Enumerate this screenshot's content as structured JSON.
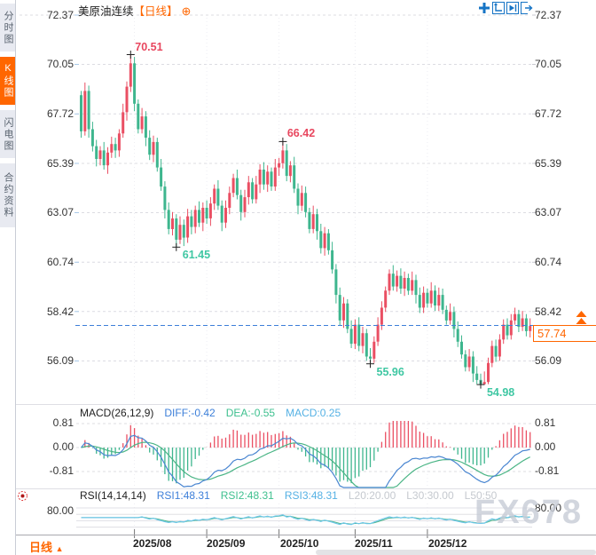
{
  "sidebar": {
    "tabs": [
      {
        "label": "分时图",
        "active": false
      },
      {
        "label": "K线图",
        "active": true
      },
      {
        "label": "闪电图",
        "active": false
      },
      {
        "label": "合约资料",
        "active": false
      }
    ]
  },
  "header": {
    "symbol": "美原油连续",
    "interval_tag": "【日线】",
    "expand_glyph": "⊕"
  },
  "price_axis": [
    "72.37",
    "70.05",
    "67.72",
    "65.39",
    "63.07",
    "60.74",
    "58.42",
    "56.09"
  ],
  "macd_axis": [
    "0.81",
    "0.00",
    "-0.81"
  ],
  "rsi_axis_label": "80.00",
  "macd_header": {
    "name": "MACD(26,12,9)",
    "diff": "DIFF:-0.42",
    "dea": "DEA:-0.55",
    "macd": "MACD:0.25"
  },
  "rsi_header": {
    "name": "RSI(14,14,14)",
    "rsi1": "RSI1:48.31",
    "rsi2": "RSI2:48.31",
    "rsi3": "RSI3:48.31",
    "l20": "L20:20.00",
    "l30": "L30:30.00",
    "l50": "L50:50"
  },
  "last_price": "57.74",
  "x_axis": {
    "interval_label": "日线",
    "arrow": "▲",
    "ticks": [
      "2025/08",
      "2025/09",
      "2025/10",
      "2025/11",
      "2025/12"
    ]
  },
  "watermark": "FX678",
  "colors": {
    "up": "#ea4f63",
    "down": "#3eb68e",
    "accent": "#ff6600",
    "diff_line": "#4a86d1",
    "dea_line": "#4bb586",
    "rsi_line": "#6cc6e8",
    "guide": "#3d7fd9",
    "ann_up": "#e8475f",
    "ann_down": "#3fc7a3"
  },
  "chart_data": {
    "type": "candlestick",
    "title": "美原油连续 日线",
    "y_ticks": [
      72.37,
      70.05,
      67.72,
      65.39,
      63.07,
      60.74,
      58.42,
      56.09
    ],
    "x_tick_labels": [
      "2025/08",
      "2025/09",
      "2025/10",
      "2025/11",
      "2025/12"
    ],
    "x_tick_candle_index": [
      14,
      33,
      52,
      72,
      91
    ],
    "last_price": 57.74,
    "annotations": [
      {
        "label": "70.51",
        "index": 13,
        "price": 70.51,
        "placement": "above"
      },
      {
        "label": "61.45",
        "index": 25,
        "price": 61.45,
        "placement": "below"
      },
      {
        "label": "66.42",
        "index": 53,
        "price": 66.42,
        "placement": "above"
      },
      {
        "label": "55.96",
        "index": 76,
        "price": 55.96,
        "placement": "below"
      },
      {
        "label": "54.98",
        "index": 105,
        "price": 54.98,
        "placement": "below"
      }
    ],
    "indicators": {
      "macd": {
        "params": [
          26,
          12,
          9
        ],
        "diff": -0.42,
        "dea": -0.55,
        "macd": 0.25,
        "y_ticks": [
          0.81,
          0,
          -0.81
        ]
      },
      "rsi": {
        "params": [
          14,
          14,
          14
        ],
        "rsi1": 48.31,
        "rsi2": 48.31,
        "rsi3": 48.31,
        "levels": {
          "l20": 20,
          "l30": 30,
          "l50": 50
        },
        "y_tick": 80
      }
    },
    "candles": [
      [
        68.6,
        68.8,
        66.6,
        66.9
      ],
      [
        66.9,
        69.2,
        66.7,
        68.8
      ],
      [
        68.8,
        69.05,
        66.6,
        67.0
      ],
      [
        67.0,
        67.35,
        65.95,
        66.2
      ],
      [
        66.2,
        66.5,
        65.25,
        65.6
      ],
      [
        65.6,
        66.2,
        65.3,
        66.0
      ],
      [
        66.0,
        66.4,
        65.1,
        65.3
      ],
      [
        65.3,
        66.15,
        64.9,
        65.9
      ],
      [
        65.9,
        66.65,
        65.65,
        66.3
      ],
      [
        66.3,
        66.6,
        65.65,
        66.0
      ],
      [
        66.0,
        67.0,
        65.7,
        66.8
      ],
      [
        66.8,
        68.2,
        66.6,
        67.8
      ],
      [
        67.8,
        69.25,
        67.4,
        69.0
      ],
      [
        69.0,
        70.51,
        68.75,
        70.1
      ],
      [
        70.1,
        70.4,
        67.85,
        68.2
      ],
      [
        68.2,
        68.4,
        66.8,
        67.0
      ],
      [
        67.0,
        68.0,
        66.8,
        67.6
      ],
      [
        67.6,
        67.85,
        66.2,
        66.6
      ],
      [
        66.6,
        66.95,
        65.55,
        65.8
      ],
      [
        65.8,
        66.7,
        65.45,
        66.4
      ],
      [
        66.4,
        66.6,
        65.0,
        65.2
      ],
      [
        65.2,
        65.6,
        64.1,
        64.3
      ],
      [
        64.3,
        64.55,
        62.8,
        63.2
      ],
      [
        63.2,
        63.55,
        62.05,
        62.3
      ],
      [
        62.3,
        63.1,
        62.0,
        62.8
      ],
      [
        62.8,
        63.0,
        61.45,
        61.8
      ],
      [
        61.8,
        62.9,
        61.6,
        62.5
      ],
      [
        62.5,
        62.75,
        61.5,
        61.9
      ],
      [
        61.9,
        63.25,
        61.65,
        62.9
      ],
      [
        62.9,
        63.2,
        62.05,
        62.4
      ],
      [
        62.4,
        63.4,
        62.1,
        63.2
      ],
      [
        63.2,
        63.6,
        62.4,
        62.6
      ],
      [
        62.6,
        63.55,
        62.2,
        63.3
      ],
      [
        63.3,
        63.65,
        62.55,
        62.8
      ],
      [
        62.8,
        63.8,
        62.45,
        63.5
      ],
      [
        63.5,
        64.4,
        63.2,
        64.2
      ],
      [
        64.2,
        64.6,
        63.2,
        63.4
      ],
      [
        63.4,
        63.65,
        62.2,
        62.6
      ],
      [
        62.6,
        63.65,
        62.35,
        63.3
      ],
      [
        63.3,
        64.3,
        63.0,
        64.0
      ],
      [
        64.0,
        64.9,
        63.8,
        64.7
      ],
      [
        64.7,
        65.1,
        63.7,
        63.9
      ],
      [
        63.9,
        64.15,
        62.7,
        63.1
      ],
      [
        63.1,
        64.15,
        62.85,
        63.8
      ],
      [
        63.8,
        64.8,
        63.45,
        64.5
      ],
      [
        64.5,
        64.7,
        63.5,
        63.7
      ],
      [
        63.7,
        64.8,
        63.5,
        64.4
      ],
      [
        64.4,
        65.35,
        64.0,
        65.1
      ],
      [
        65.1,
        65.45,
        64.15,
        64.4
      ],
      [
        64.4,
        65.3,
        64.05,
        65.0
      ],
      [
        65.0,
        65.2,
        64.1,
        64.3
      ],
      [
        64.3,
        65.6,
        64.1,
        65.2
      ],
      [
        65.2,
        65.65,
        64.8,
        65.4
      ],
      [
        65.4,
        66.42,
        65.15,
        66.0
      ],
      [
        66.0,
        66.3,
        64.55,
        64.8
      ],
      [
        64.8,
        65.5,
        64.5,
        65.3
      ],
      [
        65.3,
        65.7,
        64.0,
        64.2
      ],
      [
        64.2,
        64.45,
        63.0,
        63.4
      ],
      [
        63.4,
        64.35,
        63.15,
        64.0
      ],
      [
        64.0,
        64.3,
        62.85,
        63.1
      ],
      [
        63.1,
        63.3,
        62.1,
        62.3
      ],
      [
        62.3,
        63.4,
        62.1,
        63.0
      ],
      [
        63.0,
        63.25,
        61.8,
        62.2
      ],
      [
        62.2,
        62.55,
        61.15,
        61.4
      ],
      [
        61.4,
        62.4,
        61.05,
        62.1
      ],
      [
        62.1,
        62.3,
        61.1,
        61.3
      ],
      [
        61.3,
        61.7,
        60.2,
        60.4
      ],
      [
        60.4,
        60.65,
        58.8,
        59.2
      ],
      [
        59.2,
        59.55,
        57.75,
        58.0
      ],
      [
        58.0,
        59.1,
        57.65,
        58.8
      ],
      [
        58.8,
        59.0,
        57.4,
        57.6
      ],
      [
        57.6,
        58.0,
        56.7,
        56.9
      ],
      [
        56.9,
        58.05,
        56.65,
        57.8
      ],
      [
        57.8,
        58.15,
        56.55,
        56.8
      ],
      [
        56.8,
        57.7,
        56.45,
        57.4
      ],
      [
        57.4,
        57.6,
        56.1,
        56.3
      ],
      [
        56.3,
        56.7,
        55.96,
        56.2
      ],
      [
        56.2,
        57.25,
        56.0,
        57.0
      ],
      [
        57.0,
        58.15,
        56.8,
        57.8
      ],
      [
        57.8,
        58.9,
        57.55,
        58.6
      ],
      [
        58.6,
        59.6,
        58.4,
        59.4
      ],
      [
        59.4,
        60.4,
        59.2,
        60.2
      ],
      [
        60.2,
        60.6,
        59.4,
        59.6
      ],
      [
        59.6,
        60.35,
        59.35,
        60.1
      ],
      [
        60.1,
        60.45,
        59.25,
        59.5
      ],
      [
        59.5,
        60.3,
        59.15,
        60.0
      ],
      [
        60.0,
        60.2,
        59.2,
        59.4
      ],
      [
        59.4,
        60.3,
        59.2,
        59.9
      ],
      [
        59.9,
        60.15,
        58.8,
        59.2
      ],
      [
        59.2,
        59.55,
        58.35,
        58.6
      ],
      [
        58.6,
        59.6,
        58.35,
        59.3
      ],
      [
        59.3,
        59.5,
        58.6,
        58.8
      ],
      [
        58.8,
        59.8,
        58.6,
        59.4
      ],
      [
        59.4,
        59.65,
        58.45,
        58.7
      ],
      [
        58.7,
        59.55,
        58.45,
        59.2
      ],
      [
        59.2,
        59.5,
        58.3,
        58.5
      ],
      [
        58.5,
        58.7,
        57.8,
        58.0
      ],
      [
        58.0,
        58.8,
        57.8,
        58.4
      ],
      [
        58.4,
        58.65,
        57.2,
        57.6
      ],
      [
        57.6,
        57.95,
        56.75,
        57.0
      ],
      [
        57.0,
        57.3,
        56.2,
        56.4
      ],
      [
        56.4,
        56.6,
        55.6,
        55.8
      ],
      [
        55.8,
        56.65,
        55.6,
        56.3
      ],
      [
        56.3,
        56.55,
        55.1,
        55.5
      ],
      [
        55.5,
        55.85,
        55.0,
        55.2
      ],
      [
        55.2,
        55.5,
        54.98,
        55.0
      ],
      [
        55.0,
        55.6,
        54.98,
        55.1
      ],
      [
        55.1,
        56.25,
        55.0,
        56.0
      ],
      [
        56.0,
        57.05,
        55.8,
        56.8
      ],
      [
        56.8,
        57.1,
        56.05,
        56.3
      ],
      [
        56.3,
        57.35,
        56.1,
        57.1
      ],
      [
        57.1,
        58.05,
        56.9,
        57.8
      ],
      [
        57.8,
        58.1,
        57.1,
        57.3
      ],
      [
        57.3,
        58.3,
        57.1,
        58.0
      ],
      [
        58.0,
        58.6,
        57.8,
        58.3
      ],
      [
        58.3,
        58.5,
        57.45,
        57.7
      ],
      [
        57.7,
        58.45,
        57.5,
        58.1
      ],
      [
        58.1,
        58.3,
        57.25,
        57.5
      ],
      [
        57.5,
        58.1,
        57.2,
        57.74
      ]
    ]
  }
}
